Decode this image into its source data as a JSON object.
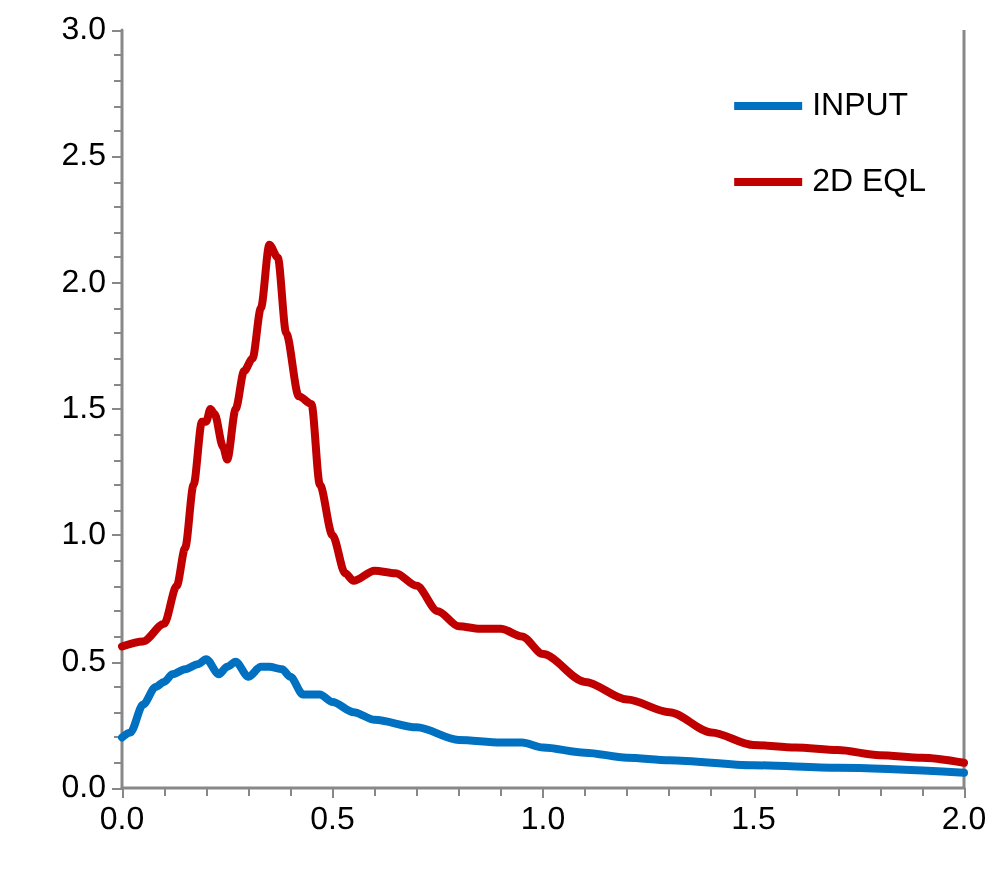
{
  "chart_data": {
    "type": "line",
    "legend": "top right",
    "grid": false,
    "marker": "none",
    "line_style": "solid",
    "xlim": [
      0,
      2
    ],
    "ylim": [
      0,
      3
    ],
    "xticks": [
      {
        "value": 0,
        "label": "0.0"
      },
      {
        "value": 0.5,
        "label": "0.5"
      },
      {
        "value": 1,
        "label": "1.0"
      },
      {
        "value": 1.5,
        "label": "1.5"
      },
      {
        "value": 2,
        "label": "2.0"
      }
    ],
    "yticks": [
      {
        "value": 0,
        "label": "0.0"
      },
      {
        "value": 0.5,
        "label": "0.5"
      },
      {
        "value": 1,
        "label": "1.0"
      },
      {
        "value": 1.5,
        "label": "1.5"
      },
      {
        "value": 2,
        "label": "2.0"
      },
      {
        "value": 2.5,
        "label": "2.5"
      },
      {
        "value": 3,
        "label": "3.0"
      }
    ],
    "series": [
      {
        "name": "INPUT",
        "color": "#0070c0",
        "x": [
          0,
          0.02,
          0.05,
          0.08,
          0.1,
          0.12,
          0.15,
          0.18,
          0.2,
          0.23,
          0.25,
          0.27,
          0.3,
          0.33,
          0.35,
          0.38,
          0.4,
          0.43,
          0.47,
          0.5,
          0.55,
          0.6,
          0.7,
          0.8,
          0.9,
          0.95,
          1.0,
          1.1,
          1.2,
          1.3,
          1.5,
          1.7,
          2.0
        ],
        "values": [
          0.2,
          0.22,
          0.33,
          0.4,
          0.42,
          0.45,
          0.47,
          0.49,
          0.51,
          0.45,
          0.48,
          0.5,
          0.44,
          0.48,
          0.48,
          0.47,
          0.44,
          0.37,
          0.37,
          0.34,
          0.3,
          0.27,
          0.24,
          0.19,
          0.18,
          0.18,
          0.16,
          0.14,
          0.12,
          0.11,
          0.09,
          0.08,
          0.06
        ]
      },
      {
        "name": "2D EQL",
        "color": "#c00000",
        "x": [
          0,
          0.05,
          0.1,
          0.13,
          0.15,
          0.17,
          0.19,
          0.2,
          0.21,
          0.22,
          0.24,
          0.25,
          0.27,
          0.29,
          0.31,
          0.33,
          0.35,
          0.37,
          0.39,
          0.42,
          0.45,
          0.47,
          0.5,
          0.53,
          0.55,
          0.6,
          0.65,
          0.7,
          0.75,
          0.8,
          0.85,
          0.9,
          0.95,
          1.0,
          1.1,
          1.2,
          1.3,
          1.4,
          1.5,
          1.6,
          1.7,
          1.8,
          1.9,
          2.0
        ],
        "values": [
          0.56,
          0.58,
          0.65,
          0.8,
          0.95,
          1.2,
          1.45,
          1.45,
          1.5,
          1.48,
          1.35,
          1.3,
          1.5,
          1.65,
          1.7,
          1.9,
          2.15,
          2.1,
          1.8,
          1.55,
          1.52,
          1.2,
          1.0,
          0.85,
          0.82,
          0.86,
          0.85,
          0.8,
          0.7,
          0.64,
          0.63,
          0.63,
          0.6,
          0.53,
          0.42,
          0.35,
          0.3,
          0.22,
          0.17,
          0.16,
          0.15,
          0.13,
          0.12,
          0.1
        ]
      }
    ]
  }
}
